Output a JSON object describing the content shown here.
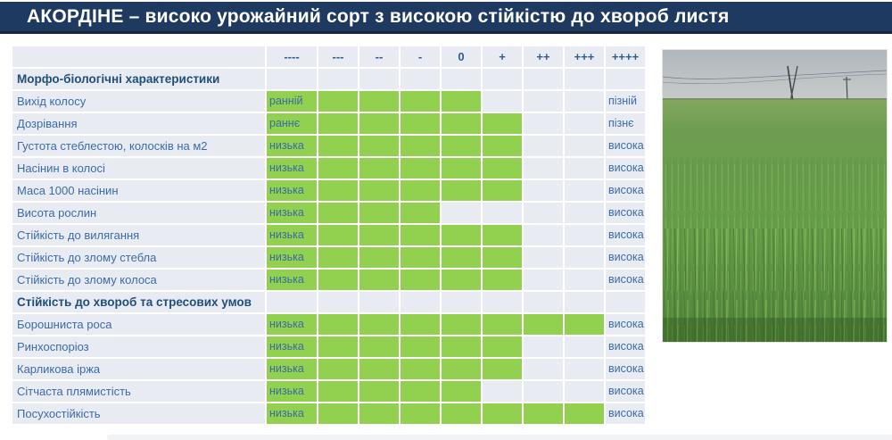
{
  "colors": {
    "title_bar_bg": "#1F3A60",
    "title_text": "#FFFFFF",
    "cell_bg": "#E9EBF3",
    "rating_green": "#92D050",
    "label_text": "#3A6BA6",
    "section_text": "#1F4E79"
  },
  "photo_name": "green-field-photo",
  "chart_data": {
    "type": "table",
    "title": "АКОРДІНЕ – високо урожайний сорт з високою стійкістю до хвороб листя",
    "scale": [
      "----",
      "---",
      "--",
      "-",
      "0",
      "+",
      "++",
      "+++",
      "++++"
    ],
    "scale_note": "green bar fills cells from ---- up to the rating value; left end label sits in the ---- cell, right end label in the ++++ cell",
    "sections": [
      {
        "header": "Морфо-біологічні характеристики",
        "rows": [
          {
            "label": "Вихід колосу",
            "min_label": "ранній",
            "max_label": "пізній",
            "rating": "0",
            "filled_cells": 5
          },
          {
            "label": "Дозрівання",
            "min_label": "раннє",
            "max_label": "пізнє",
            "rating": "+",
            "filled_cells": 6
          },
          {
            "label": "Густота стеблестою, колосків на м2",
            "min_label": "низька",
            "max_label": "висока",
            "rating": "+",
            "filled_cells": 6
          },
          {
            "label": "Насінин в колосі",
            "min_label": "низька",
            "max_label": "висока",
            "rating": "+",
            "filled_cells": 6
          },
          {
            "label": "Маса 1000 насінин",
            "min_label": "низька",
            "max_label": "висока",
            "rating": "+",
            "filled_cells": 6
          },
          {
            "label": "Висота рослин",
            "min_label": "низька",
            "max_label": "висока",
            "rating": "-",
            "filled_cells": 4
          },
          {
            "label": "Стійкість до вилягання",
            "min_label": "низька",
            "max_label": "висока",
            "rating": "+",
            "filled_cells": 6
          },
          {
            "label": "Стійкість до злому стебла",
            "min_label": "низька",
            "max_label": "висока",
            "rating": "+",
            "filled_cells": 6
          },
          {
            "label": "Стійкість до злому колоса",
            "min_label": "низька",
            "max_label": "висока",
            "rating": "+",
            "filled_cells": 6
          }
        ]
      },
      {
        "header": "Стійкість до хвороб та стресових умов",
        "rows": [
          {
            "label": "Борошниста роса",
            "min_label": "низька",
            "max_label": "висока",
            "rating": "+++",
            "filled_cells": 8
          },
          {
            "label": "Ринхоспоріоз",
            "min_label": "низька",
            "max_label": "висока",
            "rating": "+",
            "filled_cells": 6
          },
          {
            "label": "Карликова іржа",
            "min_label": "низька",
            "max_label": "висока",
            "rating": "+",
            "filled_cells": 6
          },
          {
            "label": "Сітчаста плямистість",
            "min_label": "низька",
            "max_label": "висока",
            "rating": "0",
            "filled_cells": 5
          },
          {
            "label": "Посухостійкість",
            "min_label": "низька",
            "max_label": "висока",
            "rating": "+++",
            "filled_cells": 8
          }
        ]
      }
    ]
  }
}
